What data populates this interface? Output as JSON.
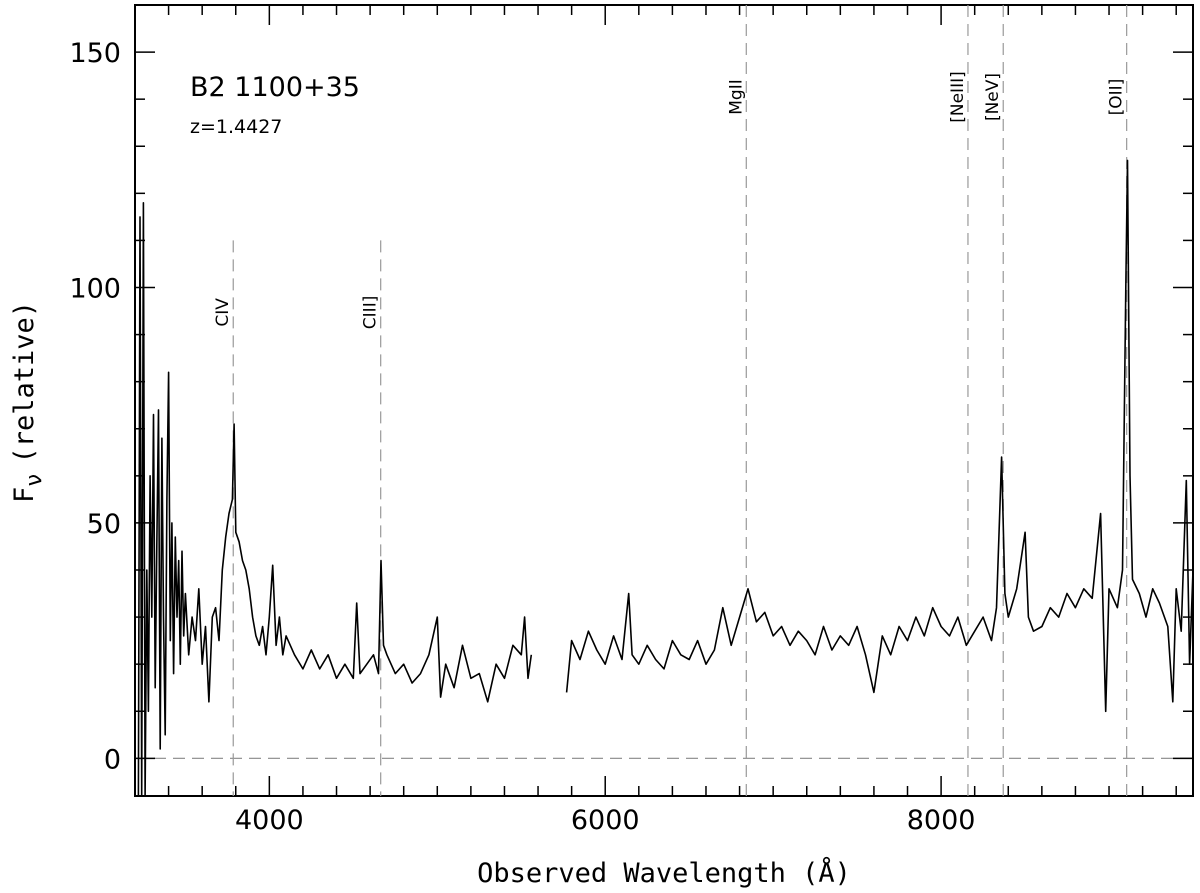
{
  "chart_data": {
    "type": "line",
    "xlabel": "Observed Wavelength (Å)",
    "ylabel": "F",
    "ylabel_sub": "ν",
    "ylabel_suffix": "(relative)",
    "xlim": [
      3200,
      9500
    ],
    "ylim": [
      -8,
      160
    ],
    "x_ticks": [
      4000,
      6000,
      8000
    ],
    "y_ticks": [
      0,
      50,
      100,
      150
    ],
    "x_tick_labels": [
      "4000",
      "6000",
      "8000"
    ],
    "y_tick_labels": [
      "0",
      "50",
      "100",
      "150"
    ],
    "zero_line": true,
    "grid": false,
    "annotations": {
      "object": "B2 1100+35",
      "redshift": "z=1.4427"
    },
    "emission_lines": [
      {
        "label": "CIV",
        "wavelength": 3785,
        "top": 110
      },
      {
        "label": "CIII]",
        "wavelength": 4663,
        "top": 110
      },
      {
        "label": "MgII",
        "wavelength": 6840,
        "top": 160
      },
      {
        "label": "[NeIII]",
        "wavelength": 8160,
        "top": 160
      },
      {
        "label": "[NeV]",
        "wavelength": 8370,
        "top": 160
      },
      {
        "label": "[OII]",
        "wavelength": 9105,
        "top": 160
      }
    ],
    "series": [
      {
        "segments": [
          [
            [
              3220,
              -8
            ],
            [
              3230,
              115
            ],
            [
              3240,
              -8
            ],
            [
              3250,
              118
            ],
            [
              3260,
              -8
            ],
            [
              3270,
              40
            ],
            [
              3280,
              10
            ],
            [
              3290,
              60
            ],
            [
              3300,
              30
            ],
            [
              3310,
              73
            ],
            [
              3320,
              15
            ],
            [
              3330,
              45
            ],
            [
              3340,
              74
            ],
            [
              3350,
              2
            ],
            [
              3360,
              68
            ],
            [
              3370,
              30
            ],
            [
              3380,
              5
            ],
            [
              3390,
              55
            ],
            [
              3400,
              82
            ],
            [
              3410,
              25
            ],
            [
              3420,
              50
            ],
            [
              3430,
              18
            ],
            [
              3440,
              47
            ],
            [
              3450,
              30
            ],
            [
              3460,
              42
            ],
            [
              3470,
              20
            ],
            [
              3480,
              44
            ],
            [
              3490,
              26
            ],
            [
              3500,
              35
            ],
            [
              3520,
              22
            ],
            [
              3540,
              30
            ],
            [
              3560,
              25
            ],
            [
              3580,
              36
            ],
            [
              3600,
              20
            ],
            [
              3620,
              28
            ],
            [
              3640,
              12
            ],
            [
              3660,
              30
            ],
            [
              3680,
              32
            ],
            [
              3700,
              25
            ],
            [
              3720,
              40
            ],
            [
              3740,
              47
            ],
            [
              3760,
              52
            ],
            [
              3780,
              55
            ],
            [
              3790,
              71
            ],
            [
              3800,
              48
            ],
            [
              3820,
              46
            ],
            [
              3840,
              42
            ],
            [
              3860,
              40
            ],
            [
              3880,
              36
            ],
            [
              3900,
              30
            ],
            [
              3920,
              26
            ],
            [
              3940,
              24
            ],
            [
              3960,
              28
            ],
            [
              3980,
              22
            ],
            [
              4000,
              30
            ],
            [
              4020,
              41
            ],
            [
              4040,
              24
            ],
            [
              4060,
              30
            ],
            [
              4080,
              22
            ],
            [
              4100,
              26
            ],
            [
              4150,
              22
            ],
            [
              4200,
              19
            ],
            [
              4250,
              23
            ],
            [
              4300,
              19
            ],
            [
              4350,
              22
            ],
            [
              4400,
              17
            ],
            [
              4450,
              20
            ],
            [
              4500,
              17
            ],
            [
              4520,
              33
            ],
            [
              4540,
              18
            ],
            [
              4580,
              20
            ],
            [
              4620,
              22
            ],
            [
              4650,
              18
            ],
            [
              4665,
              42
            ],
            [
              4680,
              24
            ],
            [
              4700,
              22
            ],
            [
              4750,
              18
            ],
            [
              4800,
              20
            ],
            [
              4850,
              16
            ],
            [
              4900,
              18
            ],
            [
              4950,
              22
            ],
            [
              5000,
              30
            ],
            [
              5020,
              13
            ],
            [
              5050,
              20
            ],
            [
              5100,
              15
            ],
            [
              5150,
              24
            ],
            [
              5200,
              17
            ],
            [
              5250,
              18
            ],
            [
              5300,
              12
            ],
            [
              5350,
              20
            ],
            [
              5400,
              17
            ],
            [
              5450,
              24
            ],
            [
              5500,
              22
            ],
            [
              5520,
              30
            ],
            [
              5540,
              17
            ],
            [
              5560,
              22
            ]
          ],
          [
            [
              5770,
              14
            ],
            [
              5800,
              25
            ],
            [
              5850,
              21
            ],
            [
              5900,
              27
            ],
            [
              5950,
              23
            ],
            [
              6000,
              20
            ],
            [
              6050,
              26
            ],
            [
              6100,
              21
            ],
            [
              6140,
              35
            ],
            [
              6160,
              22
            ],
            [
              6200,
              20
            ],
            [
              6250,
              24
            ],
            [
              6300,
              21
            ],
            [
              6350,
              19
            ],
            [
              6400,
              25
            ],
            [
              6450,
              22
            ],
            [
              6500,
              21
            ],
            [
              6550,
              25
            ],
            [
              6600,
              20
            ],
            [
              6650,
              23
            ],
            [
              6700,
              32
            ],
            [
              6750,
              24
            ],
            [
              6800,
              30
            ],
            [
              6850,
              36
            ],
            [
              6900,
              29
            ],
            [
              6950,
              31
            ],
            [
              7000,
              26
            ],
            [
              7050,
              28
            ],
            [
              7100,
              24
            ],
            [
              7150,
              27
            ],
            [
              7200,
              25
            ],
            [
              7250,
              22
            ],
            [
              7300,
              28
            ],
            [
              7350,
              23
            ],
            [
              7400,
              26
            ],
            [
              7450,
              24
            ],
            [
              7500,
              28
            ],
            [
              7550,
              22
            ],
            [
              7600,
              14
            ],
            [
              7650,
              26
            ],
            [
              7700,
              22
            ],
            [
              7750,
              28
            ],
            [
              7800,
              25
            ],
            [
              7850,
              30
            ],
            [
              7900,
              26
            ],
            [
              7950,
              32
            ],
            [
              8000,
              28
            ],
            [
              8050,
              26
            ],
            [
              8100,
              30
            ],
            [
              8150,
              24
            ],
            [
              8200,
              27
            ],
            [
              8250,
              30
            ],
            [
              8300,
              25
            ],
            [
              8330,
              32
            ],
            [
              8360,
              64
            ],
            [
              8380,
              35
            ],
            [
              8400,
              30
            ],
            [
              8450,
              36
            ],
            [
              8500,
              48
            ],
            [
              8520,
              30
            ],
            [
              8550,
              27
            ],
            [
              8600,
              28
            ],
            [
              8650,
              32
            ],
            [
              8700,
              30
            ],
            [
              8750,
              35
            ],
            [
              8800,
              32
            ],
            [
              8850,
              36
            ],
            [
              8900,
              34
            ],
            [
              8950,
              52
            ],
            [
              8980,
              10
            ],
            [
              9000,
              36
            ],
            [
              9050,
              32
            ],
            [
              9080,
              40
            ],
            [
              9100,
              100
            ],
            [
              9110,
              127
            ],
            [
              9125,
              60
            ],
            [
              9140,
              38
            ],
            [
              9180,
              35
            ],
            [
              9220,
              30
            ],
            [
              9260,
              36
            ],
            [
              9300,
              33
            ],
            [
              9350,
              28
            ],
            [
              9380,
              12
            ],
            [
              9400,
              36
            ],
            [
              9430,
              27
            ],
            [
              9460,
              59
            ],
            [
              9480,
              20
            ],
            [
              9500,
              40
            ]
          ]
        ]
      }
    ]
  }
}
